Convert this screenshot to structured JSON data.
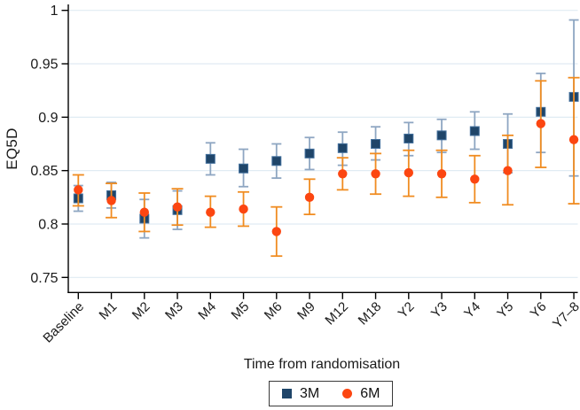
{
  "figure": {
    "background": "#ffffff",
    "axis_color": "#000000",
    "grid_color": "#e0ebf3",
    "text_color": "#1a1a1a"
  },
  "chart_data": {
    "type": "scatter",
    "title": "",
    "xlabel": "Time from randomisation",
    "ylabel": "EQ5D",
    "grid": "horizontal",
    "legend_position": "bottom",
    "categories": [
      "Baseline",
      "M1",
      "M2",
      "M3",
      "M4",
      "M5",
      "M6",
      "M9",
      "M12",
      "M18",
      "Y2",
      "Y3",
      "Y4",
      "Y5",
      "Y6",
      "Y7–8"
    ],
    "yticks": {
      "values": [
        0.75,
        0.8,
        0.85,
        0.9,
        0.95,
        1
      ],
      "labels": [
        "0.75",
        "0.8",
        "0.85",
        "0.9",
        "0.95",
        "1"
      ]
    },
    "ylim": [
      0.735,
      1.005
    ],
    "series": [
      {
        "name": "3M",
        "marker": "square",
        "color": "#1f4569",
        "marker_edge": "#44719e",
        "error_color": "#8ea6c2",
        "values": [
          0.824,
          0.827,
          0.805,
          0.813,
          0.861,
          0.852,
          0.859,
          0.866,
          0.871,
          0.875,
          0.88,
          0.883,
          0.887,
          0.875,
          0.905,
          0.919
        ],
        "ci_low": [
          0.812,
          0.815,
          0.787,
          0.795,
          0.846,
          0.835,
          0.843,
          0.851,
          0.855,
          0.86,
          0.864,
          0.867,
          0.87,
          0.848,
          0.867,
          0.845
        ],
        "ci_high": [
          0.836,
          0.839,
          0.823,
          0.831,
          0.876,
          0.87,
          0.875,
          0.881,
          0.886,
          0.891,
          0.895,
          0.898,
          0.905,
          0.903,
          0.941,
          0.991
        ]
      },
      {
        "name": "6M",
        "marker": "circle",
        "color": "#fc4611",
        "marker_edge": "#fc4611",
        "error_color": "#f08c21",
        "values": [
          0.832,
          0.822,
          0.811,
          0.816,
          0.811,
          0.814,
          0.793,
          0.825,
          0.847,
          0.847,
          0.848,
          0.847,
          0.842,
          0.85,
          0.894,
          0.879
        ],
        "ci_low": [
          0.817,
          0.806,
          0.793,
          0.799,
          0.797,
          0.798,
          0.77,
          0.809,
          0.832,
          0.828,
          0.826,
          0.825,
          0.82,
          0.818,
          0.853,
          0.819
        ],
        "ci_high": [
          0.846,
          0.838,
          0.829,
          0.833,
          0.826,
          0.83,
          0.816,
          0.842,
          0.862,
          0.866,
          0.869,
          0.869,
          0.864,
          0.883,
          0.934,
          0.937
        ]
      }
    ]
  }
}
